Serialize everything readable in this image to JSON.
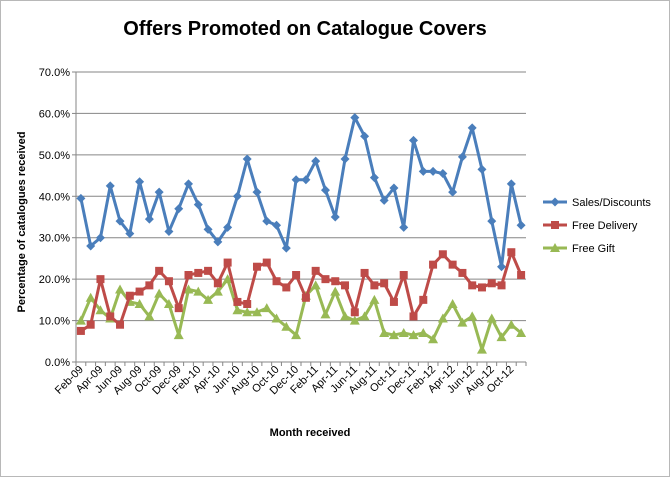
{
  "chart_data": {
    "type": "line",
    "title": "Offers Promoted on Catalogue Covers",
    "xlabel": "Month received",
    "ylabel": "Percentage of catalogues received",
    "ylim": [
      0,
      70
    ],
    "y_ticks": [
      "0.0%",
      "10.0%",
      "20.0%",
      "30.0%",
      "40.0%",
      "50.0%",
      "60.0%",
      "70.0%"
    ],
    "grid": "horizontal",
    "legend_position": "right",
    "x": [
      "Feb-09",
      "Mar-09",
      "Apr-09",
      "May-09",
      "Jun-09",
      "Jul-09",
      "Aug-09",
      "Sep-09",
      "Oct-09",
      "Nov-09",
      "Dec-09",
      "Jan-10",
      "Feb-10",
      "Mar-10",
      "Apr-10",
      "May-10",
      "Jun-10",
      "Jul-10",
      "Aug-10",
      "Sep-10",
      "Oct-10",
      "Nov-10",
      "Dec-10",
      "Jan-11",
      "Feb-11",
      "Mar-11",
      "Apr-11",
      "May-11",
      "Jun-11",
      "Jul-11",
      "Aug-11",
      "Sep-11",
      "Oct-11",
      "Nov-11",
      "Dec-11",
      "Jan-12",
      "Feb-12",
      "Mar-12",
      "Apr-12",
      "May-12",
      "Jun-12",
      "Jul-12",
      "Aug-12",
      "Sep-12",
      "Oct-12",
      "Nov-12"
    ],
    "x_tick_labels": [
      "Feb-09",
      "Apr-09",
      "Jun-09",
      "Aug-09",
      "Oct-09",
      "Dec-09",
      "Feb-10",
      "Apr-10",
      "Jun-10",
      "Aug-10",
      "Oct-10",
      "Dec-10",
      "Feb-11",
      "Apr-11",
      "Jun-11",
      "Aug-11",
      "Oct-11",
      "Dec-11",
      "Feb-12",
      "Apr-12",
      "Jun-12",
      "Aug-12",
      "Oct-12"
    ],
    "series": [
      {
        "name": "Sales/Discounts",
        "color": "#4a7ebb",
        "marker": "diamond",
        "values": [
          39.5,
          28.0,
          30.0,
          42.5,
          34.0,
          31.0,
          43.5,
          34.5,
          41.0,
          31.5,
          37.0,
          43.0,
          38.0,
          32.0,
          29.0,
          32.5,
          40.0,
          49.0,
          41.0,
          34.0,
          33.0,
          27.5,
          44.0,
          44.0,
          48.5,
          41.5,
          35.0,
          49.0,
          59.0,
          54.5,
          44.5,
          39.0,
          42.0,
          32.5,
          53.5,
          46.0,
          46.0,
          45.5,
          41.0,
          49.5,
          56.5,
          46.5,
          34.0,
          23.0,
          43.0,
          33.0
        ]
      },
      {
        "name": "Free Delivery",
        "color": "#be4b48",
        "marker": "square",
        "values": [
          7.5,
          9.0,
          20.0,
          11.0,
          9.0,
          16.0,
          17.0,
          18.5,
          22.0,
          19.5,
          13.0,
          21.0,
          21.5,
          22.0,
          19.0,
          24.0,
          14.5,
          14.0,
          23.0,
          24.0,
          19.5,
          18.0,
          21.0,
          15.5,
          22.0,
          20.0,
          19.5,
          18.5,
          12.0,
          21.5,
          18.5,
          19.0,
          14.5,
          21.0,
          11.0,
          15.0,
          23.5,
          26.0,
          23.5,
          21.5,
          18.5,
          18.0,
          19.0,
          18.5,
          26.5,
          21.0
        ]
      },
      {
        "name": "Free Gift",
        "color": "#98b954",
        "marker": "triangle",
        "values": [
          10.0,
          15.5,
          12.5,
          10.5,
          17.5,
          14.5,
          14.0,
          11.0,
          16.5,
          14.0,
          6.5,
          17.5,
          17.0,
          15.0,
          17.0,
          20.0,
          12.5,
          12.0,
          12.0,
          13.0,
          10.5,
          8.5,
          6.5,
          16.0,
          18.5,
          11.5,
          17.0,
          11.0,
          10.0,
          11.0,
          15.0,
          7.0,
          6.5,
          7.0,
          6.5,
          7.0,
          5.5,
          10.5,
          14.0,
          9.5,
          11.0,
          3.0,
          10.5,
          6.0,
          9.0,
          7.0
        ]
      }
    ]
  }
}
